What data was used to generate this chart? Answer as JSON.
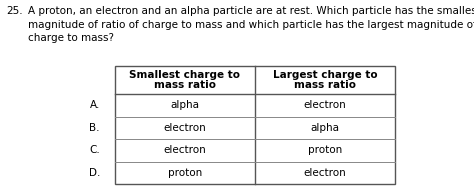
{
  "question_number": "25.",
  "question_text": "A proton, an electron and an alpha particle are at rest. Which particle has the smallest\nmagnitude of ratio of charge to mass and which particle has the largest magnitude of ratio of\ncharge to mass?",
  "col_headers": [
    "Smallest charge to\nmass ratio",
    "Largest charge to\nmass ratio"
  ],
  "row_labels": [
    "A.",
    "B.",
    "C.",
    "D."
  ],
  "table_data": [
    [
      "alpha",
      "electron"
    ],
    [
      "electron",
      "alpha"
    ],
    [
      "electron",
      "proton"
    ],
    [
      "proton",
      "electron"
    ]
  ],
  "bg_color": "#ffffff",
  "text_color": "#000000",
  "border_color": "#888888",
  "font_size_question": 7.5,
  "font_size_table": 7.5,
  "font_size_header": 7.5
}
